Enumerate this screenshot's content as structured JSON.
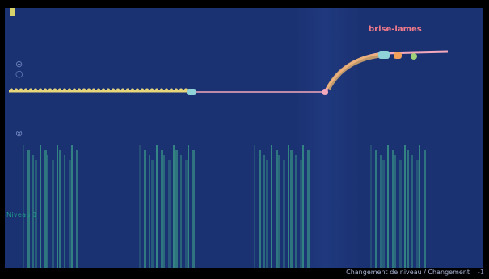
{
  "window": {
    "top_marker_icon": "level-marker-icon"
  },
  "hud": {
    "player_name": "brise-lames",
    "left_label": "Niveau 1",
    "side_icons": [
      "circle-icon",
      "circle-icon",
      "close-circle-icon"
    ]
  },
  "footer": {
    "status_text": "Changement de niveau / Changement",
    "extra": "-1"
  },
  "colors": {
    "background": "#1b3272",
    "track": "#e8d77a",
    "trail": "#f4a8bc",
    "flash": "#3ea58a"
  }
}
